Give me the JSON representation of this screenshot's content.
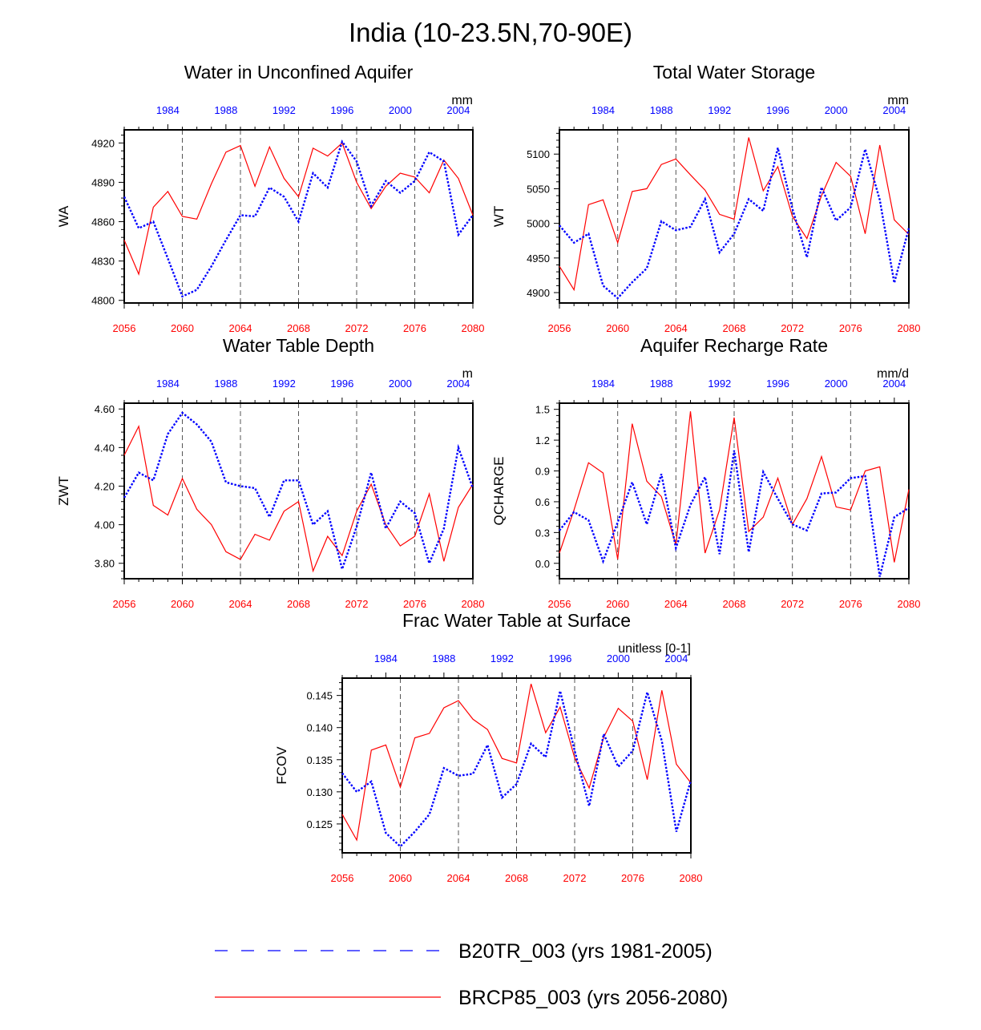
{
  "page_title": "India (10-23.5N,70-90E)",
  "colors": {
    "rcp85": "#ff0000",
    "b20tr": "#0000ff",
    "axis": "#000000",
    "grid": "#555555"
  },
  "legend": {
    "items": [
      {
        "label": "B20TR_003 (yrs 1981-2005)",
        "color": "#0000ff",
        "style": "dashed"
      },
      {
        "label": "BRCP85_003 (yrs 2056-2080)",
        "color": "#ff0000",
        "style": "solid"
      }
    ]
  },
  "chart_data": [
    {
      "type": "line",
      "title": "Water in Unconfined Aquifer",
      "ylabel": "WA",
      "units": "mm",
      "ylim": [
        4798,
        4930
      ],
      "yticks": [
        4800,
        4830,
        4860,
        4890,
        4920
      ],
      "ytick_labels": [
        "4800",
        "4830",
        "4860",
        "4890",
        "4920"
      ],
      "x_bottom": {
        "range": [
          2056,
          2080
        ],
        "ticks": [
          2056,
          2060,
          2064,
          2068,
          2072,
          2076,
          2080
        ]
      },
      "x_top": {
        "range": [
          1981,
          2005
        ],
        "ticks": [
          1984,
          1988,
          1992,
          1996,
          2000,
          2004
        ]
      },
      "grid_x": [
        2060,
        2064,
        2068,
        2072,
        2076
      ],
      "series": [
        {
          "name": "BRCP85_003 (yrs 2056-2080)",
          "style": "solid",
          "values": [
            4846,
            4820,
            4871,
            4883,
            4864,
            4862,
            4889,
            4913,
            4918,
            4887,
            4917,
            4893,
            4879,
            4916,
            4910,
            4920,
            4890,
            4870,
            4887,
            4897,
            4894,
            4882,
            4907,
            4893,
            4865
          ]
        },
        {
          "name": "B20TR_003 (yrs 1981-2005)",
          "style": "dashed",
          "values": [
            4879,
            4855,
            4860,
            4832,
            4803,
            4808,
            4826,
            4846,
            4865,
            4864,
            4886,
            4879,
            4860,
            4897,
            4886,
            4921,
            4906,
            4872,
            4891,
            4882,
            4891,
            4913,
            4906,
            4850,
            4865
          ]
        }
      ]
    },
    {
      "type": "line",
      "title": "Total Water Storage",
      "ylabel": "WT",
      "units": "mm",
      "ylim": [
        4885,
        5135
      ],
      "yticks": [
        4900,
        4950,
        5000,
        5050,
        5100
      ],
      "ytick_labels": [
        "4900",
        "4950",
        "5000",
        "5050",
        "5100"
      ],
      "x_bottom": {
        "range": [
          2056,
          2080
        ],
        "ticks": [
          2056,
          2060,
          2064,
          2068,
          2072,
          2076,
          2080
        ]
      },
      "x_top": {
        "range": [
          1981,
          2005
        ],
        "ticks": [
          1984,
          1988,
          1992,
          1996,
          2000,
          2004
        ]
      },
      "grid_x": [
        2060,
        2064,
        2068,
        2072,
        2076
      ],
      "series": [
        {
          "name": "BRCP85_003 (yrs 2056-2080)",
          "style": "solid",
          "values": [
            4938,
            4904,
            5027,
            5034,
            4972,
            5046,
            5050,
            5085,
            5093,
            5070,
            5048,
            5013,
            5006,
            5124,
            5047,
            5082,
            5010,
            4978,
            5040,
            5088,
            5068,
            4985,
            5113,
            5005,
            4984
          ]
        },
        {
          "name": "B20TR_003 (yrs 1981-2005)",
          "style": "dashed",
          "values": [
            4997,
            4972,
            4985,
            4910,
            4892,
            4915,
            4935,
            5003,
            4990,
            4995,
            5035,
            4958,
            4985,
            5035,
            5018,
            5109,
            5021,
            4951,
            5052,
            5004,
            5023,
            5107,
            5034,
            4914,
            4993
          ]
        }
      ]
    },
    {
      "type": "line",
      "title": "Water Table Depth",
      "ylabel": "ZWT",
      "units": "m",
      "ylim": [
        3.72,
        4.63
      ],
      "yticks": [
        3.8,
        4.0,
        4.2,
        4.4,
        4.6
      ],
      "ytick_labels": [
        "3.80",
        "4.00",
        "4.20",
        "4.40",
        "4.60"
      ],
      "x_bottom": {
        "range": [
          2056,
          2080
        ],
        "ticks": [
          2056,
          2060,
          2064,
          2068,
          2072,
          2076,
          2080
        ]
      },
      "x_top": {
        "range": [
          1981,
          2005
        ],
        "ticks": [
          1984,
          1988,
          1992,
          1996,
          2000,
          2004
        ]
      },
      "grid_x": [
        2060,
        2064,
        2068,
        2072,
        2076
      ],
      "series": [
        {
          "name": "BRCP85_003 (yrs 2056-2080)",
          "style": "solid",
          "values": [
            4.36,
            4.51,
            4.1,
            4.05,
            4.24,
            4.08,
            4.0,
            3.86,
            3.82,
            3.95,
            3.92,
            4.07,
            4.12,
            3.76,
            3.94,
            3.84,
            4.07,
            4.21,
            4.0,
            3.89,
            3.94,
            4.16,
            3.81,
            4.09,
            4.21
          ]
        },
        {
          "name": "B20TR_003 (yrs 1981-2005)",
          "style": "dashed",
          "values": [
            4.14,
            4.27,
            4.23,
            4.47,
            4.58,
            4.52,
            4.43,
            4.22,
            4.2,
            4.19,
            4.04,
            4.23,
            4.23,
            4.0,
            4.07,
            3.77,
            3.99,
            4.27,
            3.98,
            4.12,
            4.06,
            3.8,
            3.98,
            4.4,
            4.19
          ]
        }
      ]
    },
    {
      "type": "line",
      "title": "Aquifer Recharge Rate",
      "ylabel": "QCHARGE",
      "units": "mm/d",
      "ylim": [
        -0.15,
        1.56
      ],
      "yticks": [
        0.0,
        0.3,
        0.6,
        0.9,
        1.2,
        1.5
      ],
      "ytick_labels": [
        "0.0",
        "0.3",
        "0.6",
        "0.9",
        "1.2",
        "1.5"
      ],
      "x_bottom": {
        "range": [
          2056,
          2080
        ],
        "ticks": [
          2056,
          2060,
          2064,
          2068,
          2072,
          2076,
          2080
        ]
      },
      "x_top": {
        "range": [
          1981,
          2005
        ],
        "ticks": [
          1984,
          1988,
          1992,
          1996,
          2000,
          2004
        ]
      },
      "grid_x": [
        2060,
        2064,
        2068,
        2072,
        2076
      ],
      "series": [
        {
          "name": "BRCP85_003 (yrs 2056-2080)",
          "style": "solid",
          "values": [
            0.1,
            0.52,
            0.98,
            0.88,
            0.04,
            1.36,
            0.8,
            0.65,
            0.18,
            1.48,
            0.1,
            0.52,
            1.42,
            0.31,
            0.45,
            0.83,
            0.38,
            0.63,
            1.04,
            0.55,
            0.52,
            0.9,
            0.94,
            0.01,
            0.72
          ]
        },
        {
          "name": "B20TR_003 (yrs 1981-2005)",
          "style": "dashed",
          "values": [
            0.32,
            0.5,
            0.42,
            0.02,
            0.4,
            0.79,
            0.38,
            0.87,
            0.15,
            0.57,
            0.84,
            0.09,
            1.1,
            0.11,
            0.89,
            0.63,
            0.38,
            0.32,
            0.68,
            0.69,
            0.83,
            0.85,
            -0.13,
            0.45,
            0.54
          ]
        }
      ]
    },
    {
      "type": "line",
      "title": "Frac Water Table at Surface",
      "ylabel": "FCOV",
      "units": "unitless [0-1]",
      "ylim": [
        0.1205,
        0.1477
      ],
      "yticks": [
        0.125,
        0.13,
        0.135,
        0.14,
        0.145
      ],
      "ytick_labels": [
        "0.125",
        "0.130",
        "0.135",
        "0.140",
        "0.145"
      ],
      "x_bottom": {
        "range": [
          2056,
          2080
        ],
        "ticks": [
          2056,
          2060,
          2064,
          2068,
          2072,
          2076,
          2080
        ]
      },
      "x_top": {
        "range": [
          1981,
          2005
        ],
        "ticks": [
          1984,
          1988,
          1992,
          1996,
          2000,
          2004
        ]
      },
      "grid_x": [
        2060,
        2064,
        2068,
        2072,
        2076
      ],
      "series": [
        {
          "name": "BRCP85_003 (yrs 2056-2080)",
          "style": "solid",
          "values": [
            0.1265,
            0.1225,
            0.1365,
            0.1373,
            0.1307,
            0.1384,
            0.1391,
            0.1431,
            0.1442,
            0.1413,
            0.1397,
            0.1352,
            0.1345,
            0.1468,
            0.1392,
            0.1432,
            0.1353,
            0.1306,
            0.1385,
            0.143,
            0.141,
            0.1319,
            0.1458,
            0.1343,
            0.1314
          ]
        },
        {
          "name": "B20TR_003 (yrs 1981-2005)",
          "style": "dashed",
          "values": [
            0.1329,
            0.13,
            0.1316,
            0.1236,
            0.1215,
            0.1238,
            0.1265,
            0.1337,
            0.1325,
            0.1328,
            0.1373,
            0.1291,
            0.1312,
            0.1375,
            0.1354,
            0.1457,
            0.1364,
            0.1278,
            0.139,
            0.1339,
            0.1364,
            0.1455,
            0.1379,
            0.1238,
            0.1318
          ]
        }
      ]
    }
  ]
}
